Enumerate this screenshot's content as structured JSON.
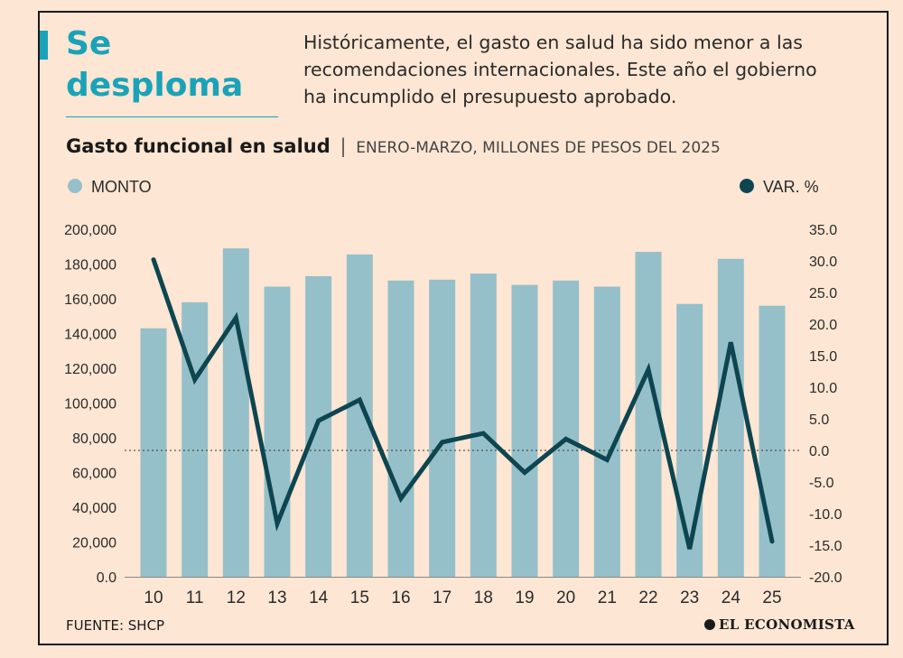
{
  "headline": {
    "line1": "Se",
    "line2": "desploma"
  },
  "intro": "Históricamente, el gasto en salud ha sido menor a las recomendaciones internacionales. Este año el gobierno ha incumplido el presupuesto aprobado.",
  "chart_title": {
    "main": "Gasto funcional en salud",
    "separator": "|",
    "sub": "ENERO-MARZO, MILLONES DE PESOS DEL 2025"
  },
  "footer": {
    "source": "FUENTE: SHCP",
    "brand": "EL ECONOMISTA"
  },
  "colors": {
    "bar": "#96c0c9",
    "line": "#0d4550",
    "accent": "#1aa3b8",
    "background": "#fde6d3"
  },
  "chart_data": {
    "type": "bar",
    "categories": [
      "10",
      "11",
      "12",
      "13",
      "14",
      "15",
      "16",
      "17",
      "18",
      "19",
      "20",
      "21",
      "22",
      "23",
      "24",
      "25"
    ],
    "series": [
      {
        "name": "MONTO",
        "type": "bar",
        "axis": "left",
        "values": [
          143000,
          158000,
          189000,
          167000,
          173000,
          185500,
          170500,
          171000,
          174500,
          168000,
          170500,
          167000,
          187000,
          157000,
          183000,
          156000
        ]
      },
      {
        "name": "VAR. %",
        "type": "line",
        "axis": "right",
        "values": [
          30.2,
          11.2,
          21.0,
          -11.6,
          4.7,
          8.0,
          -7.6,
          1.3,
          2.7,
          -3.5,
          1.8,
          -1.5,
          12.8,
          -15.6,
          17.1,
          -14.4
        ]
      }
    ],
    "y_left": {
      "lim": [
        0,
        200000
      ],
      "ticks": [
        0,
        20000,
        40000,
        60000,
        80000,
        100000,
        120000,
        140000,
        160000,
        180000,
        200000
      ],
      "tick_labels": [
        "0.0",
        "20,000",
        "40,000",
        "60,000",
        "80,000",
        "100,000",
        "120,000",
        "140,000",
        "160,000",
        "180,000",
        "200,000"
      ]
    },
    "y_right": {
      "lim": [
        -20,
        35
      ],
      "ticks": [
        -20,
        -15,
        -10,
        -5,
        0,
        5,
        10,
        15,
        20,
        25,
        30,
        35
      ],
      "tick_labels": [
        "-20.0",
        "-15.0",
        "-10.0",
        "-5.0",
        "0.0",
        "5.0",
        "10.0",
        "15.0",
        "20.0",
        "25.0",
        "30.0",
        "35.0"
      ]
    },
    "zero_reference_line": "dotted",
    "legend": [
      "MONTO",
      "VAR. %"
    ],
    "legend_position": "top"
  }
}
